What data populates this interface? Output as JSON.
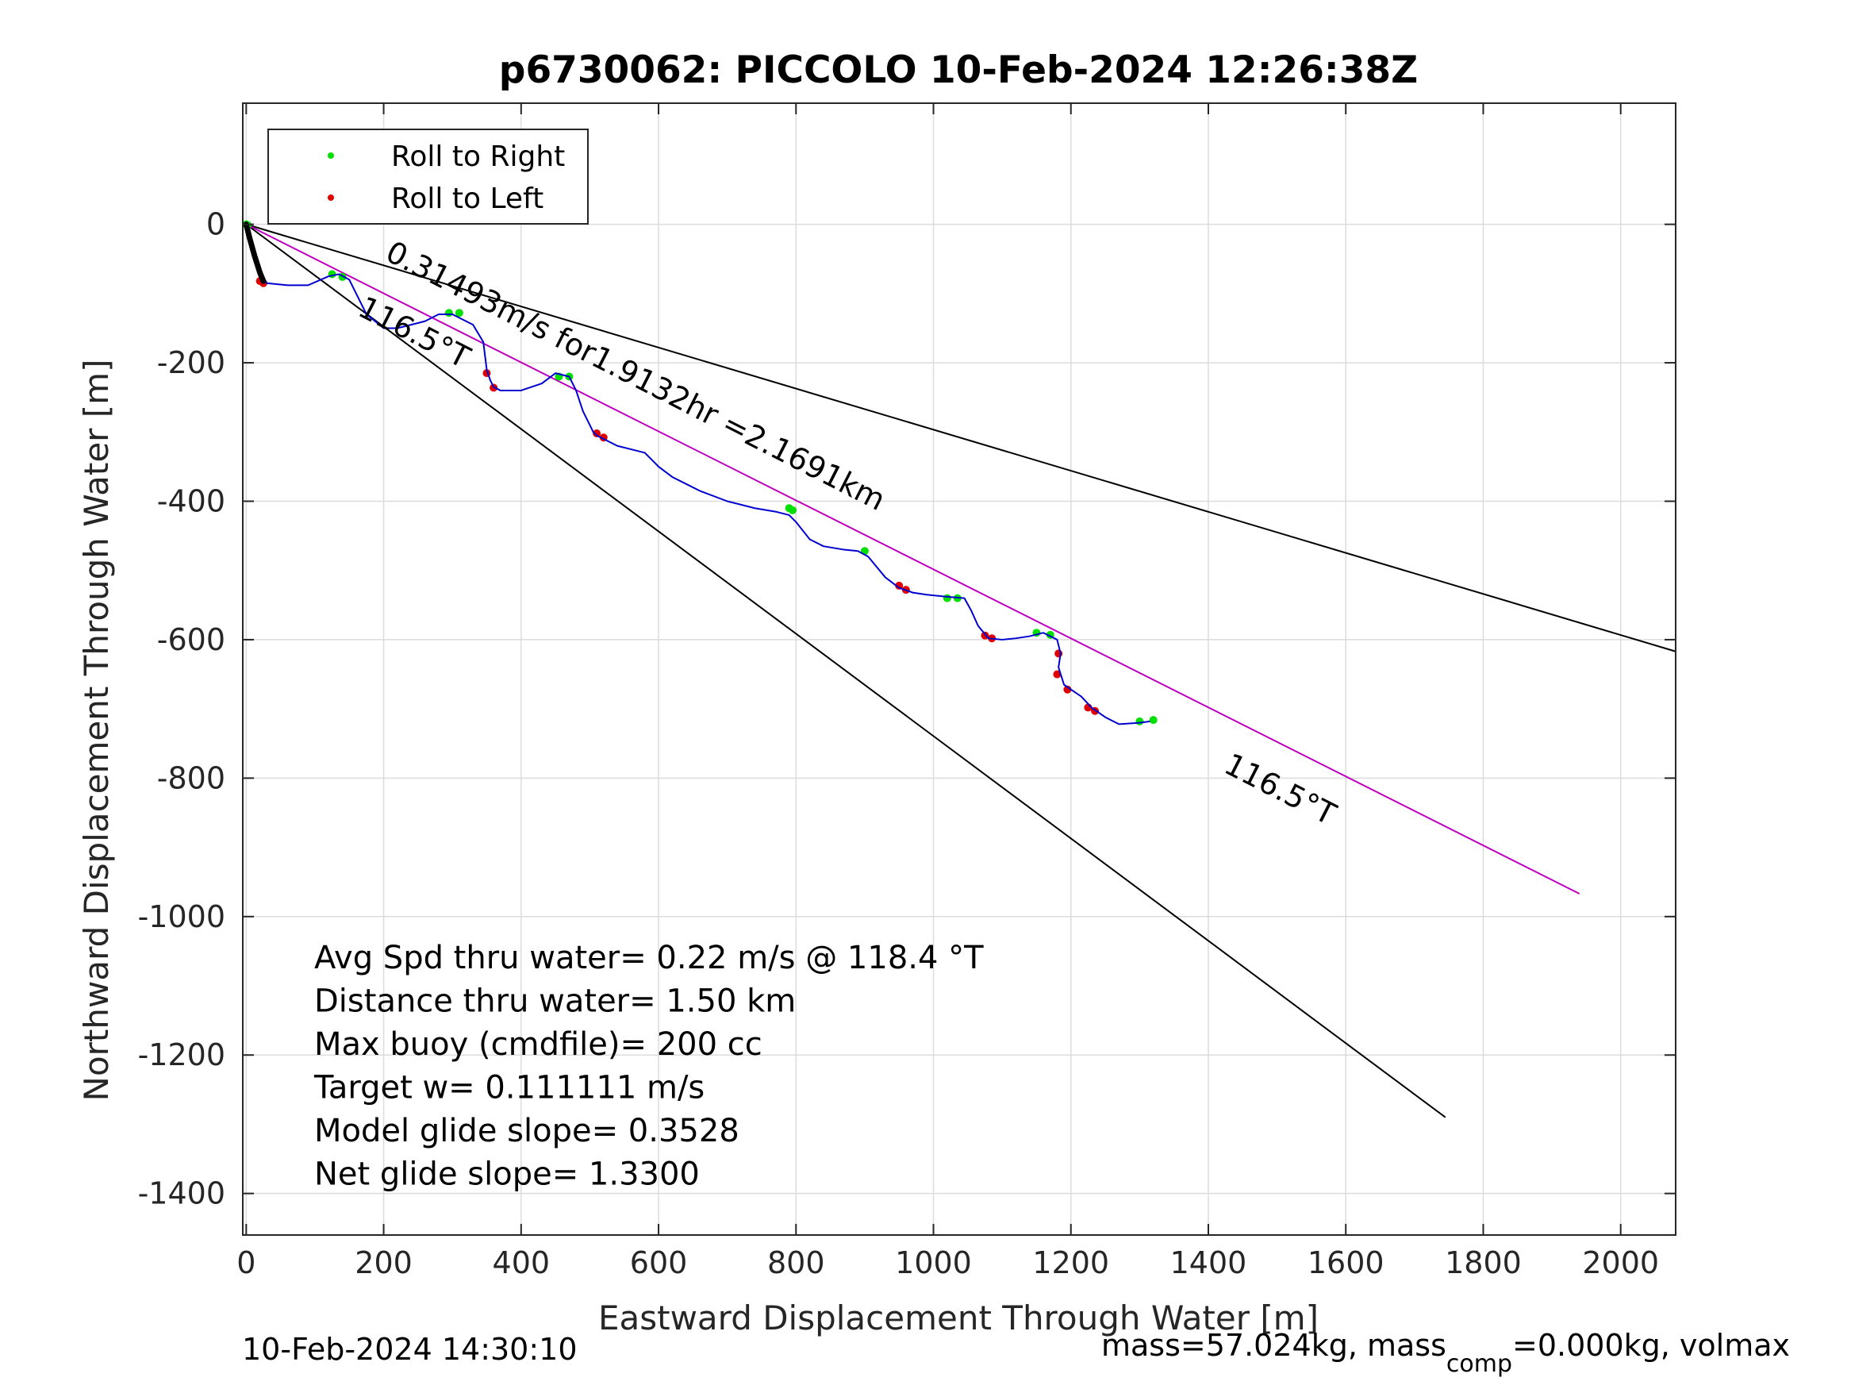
{
  "chart_data": {
    "type": "line",
    "title": "p6730062: PICCOLO 10-Feb-2024 12:26:38Z",
    "xlabel": "Eastward Displacement Through Water [m]",
    "ylabel": "Northward Displacement Through Water [m]",
    "xlim": [
      -5,
      2080
    ],
    "ylim": [
      -1460,
      175
    ],
    "xticks": [
      0,
      200,
      400,
      600,
      800,
      1000,
      1200,
      1400,
      1600,
      1800,
      2000
    ],
    "yticks": [
      0,
      -200,
      -400,
      -600,
      -800,
      -1000,
      -1200,
      -1400
    ],
    "grid": true,
    "legend": {
      "placement": "top-left",
      "entries": [
        {
          "label": "Roll to Right",
          "color": "#00e000"
        },
        {
          "label": "Roll to Left",
          "color": "#e00000"
        }
      ]
    },
    "track": {
      "name": "",
      "color": "#0000d0",
      "x": [
        0,
        5,
        12,
        20,
        30,
        60,
        90,
        120,
        135,
        150,
        160,
        175,
        200,
        220,
        240,
        260,
        280,
        300,
        330,
        345,
        350,
        355,
        360,
        370,
        400,
        430,
        450,
        470,
        480,
        490,
        500,
        505,
        510,
        520,
        540,
        560,
        580,
        600,
        620,
        640,
        660,
        700,
        740,
        770,
        790,
        800,
        820,
        840,
        870,
        890,
        905,
        930,
        950,
        970,
        990,
        1020,
        1045,
        1055,
        1065,
        1080,
        1100,
        1120,
        1140,
        1160,
        1180,
        1185,
        1182,
        1190,
        1200,
        1215,
        1230,
        1250,
        1270,
        1300,
        1315
      ],
      "y": [
        0,
        -20,
        -45,
        -70,
        -85,
        -88,
        -88,
        -75,
        -72,
        -80,
        -100,
        -130,
        -150,
        -150,
        -145,
        -140,
        -130,
        -130,
        -145,
        -170,
        -210,
        -225,
        -235,
        -240,
        -240,
        -230,
        -215,
        -220,
        -240,
        -270,
        -290,
        -300,
        -305,
        -310,
        -320,
        -325,
        -330,
        -350,
        -365,
        -375,
        -385,
        -400,
        -410,
        -415,
        -420,
        -430,
        -455,
        -465,
        -470,
        -472,
        -480,
        -510,
        -525,
        -532,
        -535,
        -538,
        -540,
        -558,
        -580,
        -598,
        -600,
        -598,
        -595,
        -590,
        -600,
        -620,
        -640,
        -665,
        -672,
        -682,
        -698,
        -712,
        -722,
        -720,
        -718
      ]
    },
    "roll_right": [
      [
        0,
        0
      ],
      [
        2,
        -1
      ],
      [
        125,
        -72
      ],
      [
        140,
        -76
      ],
      [
        295,
        -128
      ],
      [
        310,
        -128
      ],
      [
        455,
        -220
      ],
      [
        470,
        -220
      ],
      [
        790,
        -410
      ],
      [
        795,
        -413
      ],
      [
        900,
        -472
      ],
      [
        1020,
        -540
      ],
      [
        1035,
        -540
      ],
      [
        1150,
        -590
      ],
      [
        1170,
        -593
      ],
      [
        1300,
        -718
      ],
      [
        1320,
        -716
      ]
    ],
    "roll_left": [
      [
        20,
        -82
      ],
      [
        25,
        -85
      ],
      [
        350,
        -215
      ],
      [
        360,
        -236
      ],
      [
        510,
        -302
      ],
      [
        520,
        -308
      ],
      [
        950,
        -522
      ],
      [
        960,
        -528
      ],
      [
        1075,
        -594
      ],
      [
        1085,
        -598
      ],
      [
        1182,
        -620
      ],
      [
        1180,
        -650
      ],
      [
        1195,
        -672
      ],
      [
        1225,
        -698
      ],
      [
        1235,
        -703
      ]
    ],
    "bearing_lines": [
      {
        "name": "",
        "from": [
          0,
          0
        ],
        "to": [
          2080,
          -617
        ],
        "color": "#000000"
      },
      {
        "name": "",
        "from": [
          0,
          0
        ],
        "to": [
          1745,
          -1290
        ],
        "color": "#000000"
      },
      {
        "name": "",
        "from": [
          0,
          0
        ],
        "to": [
          1940,
          -967
        ],
        "color": "#c000c0"
      }
    ],
    "annotations": [
      {
        "text": "0.31493m/s for1.9132hr =2.1691km",
        "at": [
          200,
          -50
        ],
        "rotation": 27
      },
      {
        "text": "116.5°T",
        "at": [
          160,
          -130
        ],
        "rotation": 27
      },
      {
        "text": "116.5°T",
        "at": [
          1420,
          -790
        ],
        "rotation": 27
      }
    ],
    "stats": [
      "Avg Spd thru water=  0.22 m/s @ 118.4 °T",
      "Distance thru water=  1.50 km",
      "Max buoy (cmdfile)= 200 cc",
      "Target w= 0.111111 m/s",
      "Model glide slope= 0.3528",
      "Net glide slope= 1.3300"
    ],
    "footer_left": "10-Feb-2024 14:30:10",
    "footer_right": {
      "prefix": "mass=57.024kg, mass",
      "subscript": "comp",
      "suffix": "=0.000kg, volmax"
    }
  }
}
